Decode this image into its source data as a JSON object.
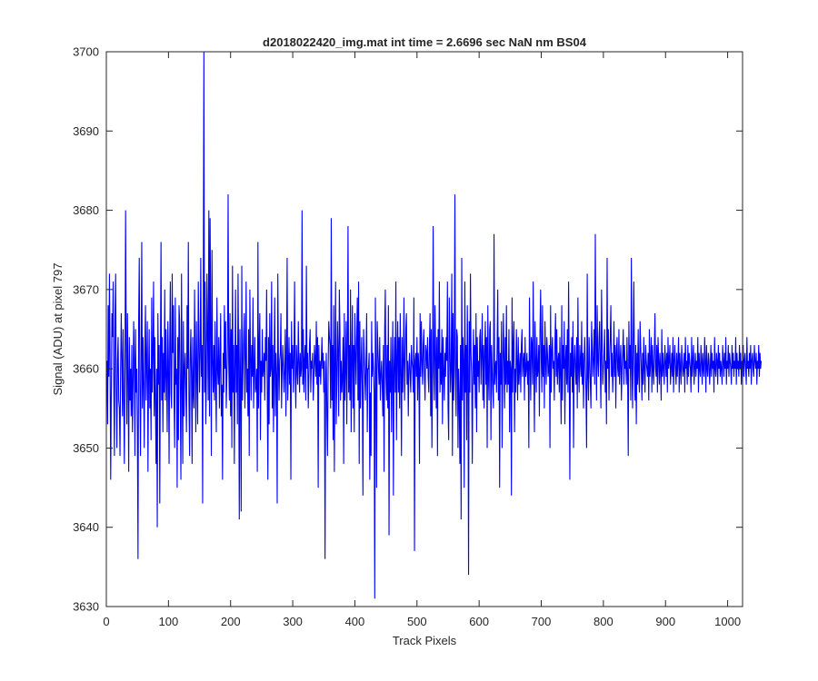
{
  "chart_data": {
    "type": "line",
    "title": "d2018022420_img.mat int time = 2.6696 sec  NaN nm BS04",
    "xlabel": "Track Pixels",
    "ylabel": "Signal (ADU) at pixel 797",
    "xlim": [
      0,
      1024
    ],
    "ylim": [
      3630,
      3700
    ],
    "xticks": [
      0,
      100,
      200,
      300,
      400,
      500,
      600,
      700,
      800,
      900,
      1000
    ],
    "yticks": [
      3630,
      3640,
      3650,
      3660,
      3670,
      3680,
      3690,
      3700
    ],
    "grid": false,
    "legend": "none",
    "series": [
      {
        "color": "#0000ff",
        "x_start": 1,
        "x_step": 1,
        "values": [
          3661,
          3653,
          3668,
          3659,
          3672,
          3661,
          3646,
          3657,
          3667,
          3664,
          3671,
          3658,
          3649,
          3666,
          3672,
          3657,
          3650,
          3661,
          3664,
          3656,
          3655,
          3649,
          3660,
          3667,
          3661,
          3654,
          3665,
          3656,
          3648,
          3660,
          3680,
          3663,
          3653,
          3667,
          3659,
          3647,
          3664,
          3656,
          3660,
          3654,
          3663,
          3652,
          3658,
          3666,
          3661,
          3649,
          3665,
          3657,
          3660,
          3652,
          3636,
          3666,
          3674,
          3658,
          3649,
          3661,
          3676,
          3655,
          3664,
          3658,
          3650,
          3663,
          3668,
          3656,
          3661,
          3666,
          3647,
          3659,
          3665,
          3655,
          3660,
          3651,
          3669,
          3657,
          3662,
          3671,
          3654,
          3664,
          3656,
          3648,
          3660,
          3640,
          3667,
          3658,
          3663,
          3643,
          3661,
          3676,
          3656,
          3664,
          3652,
          3662,
          3657,
          3670,
          3656,
          3665,
          3659,
          3652,
          3666,
          3661,
          3648,
          3663,
          3671,
          3657,
          3655,
          3672,
          3662,
          3668,
          3656,
          3650,
          3669,
          3658,
          3660,
          3645,
          3664,
          3651,
          3668,
          3666,
          3656,
          3646,
          3672,
          3658,
          3648,
          3666,
          3654,
          3660,
          3662,
          3657,
          3652,
          3668,
          3660,
          3676,
          3656,
          3649,
          3661,
          3665,
          3659,
          3648,
          3664,
          3657,
          3655,
          3670,
          3661,
          3652,
          3666,
          3659,
          3653,
          3671,
          3664,
          3657,
          3662,
          3674,
          3659,
          3663,
          3643,
          3668,
          3700,
          3657,
          3671,
          3653,
          3659,
          3672,
          3664,
          3656,
          3680,
          3654,
          3679,
          3665,
          3649,
          3675,
          3661,
          3657,
          3663,
          3656,
          3666,
          3658,
          3652,
          3669,
          3660,
          3658,
          3664,
          3655,
          3661,
          3667,
          3654,
          3658,
          3646,
          3662,
          3657,
          3668,
          3660,
          3666,
          3655,
          3659,
          3663,
          3682,
          3661,
          3656,
          3667,
          3654,
          3665,
          3650,
          3673,
          3657,
          3663,
          3648,
          3660,
          3670,
          3657,
          3663,
          3653,
          3672,
          3661,
          3641,
          3665,
          3658,
          3642,
          3673,
          3656,
          3660,
          3664,
          3667,
          3655,
          3661,
          3671,
          3657,
          3660,
          3654,
          3665,
          3649,
          3670,
          3662,
          3656,
          3663,
          3659,
          3669,
          3655,
          3660,
          3664,
          3657,
          3658,
          3660,
          3647,
          3676,
          3655,
          3663,
          3667,
          3651,
          3661,
          3657,
          3665,
          3659,
          3660,
          3662,
          3656,
          3664,
          3661,
          3670,
          3657,
          3646,
          3664,
          3653,
          3667,
          3659,
          3660,
          3671,
          3655,
          3663,
          3652,
          3660,
          3669,
          3654,
          3662,
          3659,
          3643,
          3672,
          3661,
          3656,
          3661,
          3662,
          3667,
          3655,
          3660,
          3663,
          3660,
          3657,
          3660,
          3665,
          3654,
          3661,
          3674,
          3656,
          3660,
          3664,
          3658,
          3662,
          3646,
          3666,
          3660,
          3663,
          3657,
          3661,
          3671,
          3659,
          3655,
          3663,
          3660,
          3658,
          3666,
          3661,
          3657,
          3662,
          3659,
          3660,
          3680,
          3658,
          3665,
          3657,
          3661,
          3663,
          3656,
          3673,
          3660,
          3662,
          3655,
          3659,
          3663,
          3665,
          3657,
          3661,
          3660,
          3662,
          3656,
          3659,
          3663,
          3661,
          3659,
          3666,
          3658,
          3664,
          3645,
          3663,
          3659,
          3661,
          3658,
          3661,
          3664,
          3660,
          3662,
          3657,
          3661,
          3636,
          3658,
          3662,
          3654,
          3649,
          3660,
          3666,
          3664,
          3663,
          3655,
          3679,
          3656,
          3663,
          3651,
          3668,
          3647,
          3661,
          3671,
          3653,
          3658,
          3666,
          3662,
          3654,
          3670,
          3665,
          3656,
          3661,
          3657,
          3659,
          3664,
          3648,
          3667,
          3656,
          3660,
          3666,
          3653,
          3663,
          3678,
          3657,
          3663,
          3656,
          3670,
          3652,
          3661,
          3668,
          3655,
          3663,
          3652,
          3667,
          3662,
          3658,
          3664,
          3669,
          3656,
          3671,
          3648,
          3666,
          3655,
          3660,
          3664,
          3657,
          3644,
          3665,
          3662,
          3659,
          3656,
          3661,
          3667,
          3652,
          3660,
          3660,
          3662,
          3646,
          3657,
          3649,
          3666,
          3659,
          3662,
          3660,
          3657,
          3631,
          3669,
          3660,
          3645,
          3666,
          3663,
          3660,
          3658,
          3664,
          3656,
          3659,
          3661,
          3658,
          3654,
          3663,
          3647,
          3665,
          3670,
          3659,
          3656,
          3663,
          3655,
          3668,
          3639,
          3661,
          3657,
          3664,
          3652,
          3660,
          3666,
          3644,
          3660,
          3664,
          3657,
          3671,
          3651,
          3661,
          3666,
          3657,
          3664,
          3655,
          3667,
          3660,
          3649,
          3664,
          3657,
          3661,
          3669,
          3656,
          3660,
          3665,
          3667,
          3658,
          3661,
          3654,
          3660,
          3662,
          3659,
          3657,
          3663,
          3661,
          3660,
          3657,
          3669,
          3637,
          3661,
          3662,
          3659,
          3664,
          3656,
          3662,
          3660,
          3648,
          3667,
          3659,
          3666,
          3661,
          3658,
          3663,
          3665,
          3659,
          3656,
          3663,
          3662,
          3660,
          3664,
          3659,
          3657,
          3663,
          3667,
          3654,
          3665,
          3650,
          3659,
          3678,
          3660,
          3656,
          3668,
          3662,
          3655,
          3664,
          3649,
          3665,
          3660,
          3671,
          3657,
          3662,
          3658,
          3665,
          3653,
          3664,
          3660,
          3656,
          3662,
          3659,
          3664,
          3661,
          3671,
          3655,
          3651,
          3669,
          3663,
          3657,
          3660,
          3672,
          3649,
          3667,
          3656,
          3661,
          3682,
          3659,
          3654,
          3665,
          3664,
          3650,
          3660,
          3656,
          3648,
          3663,
          3641,
          3674,
          3656,
          3664,
          3661,
          3645,
          3671,
          3657,
          3663,
          3651,
          3668,
          3660,
          3634,
          3666,
          3657,
          3672,
          3662,
          3659,
          3648,
          3660,
          3665,
          3658,
          3663,
          3655,
          3667,
          3652,
          3664,
          3659,
          3661,
          3657,
          3664,
          3665,
          3658,
          3662,
          3667,
          3656,
          3663,
          3655,
          3662,
          3666,
          3658,
          3664,
          3650,
          3668,
          3659,
          3656,
          3665,
          3666,
          3651,
          3663,
          3660,
          3657,
          3655,
          3677,
          3658,
          3660,
          3661,
          3657,
          3663,
          3670,
          3656,
          3664,
          3645,
          3662,
          3658,
          3666,
          3650,
          3660,
          3667,
          3661,
          3655,
          3664,
          3658,
          3668,
          3657,
          3661,
          3658,
          3665,
          3652,
          3661,
          3660,
          3644,
          3669,
          3657,
          3663,
          3666,
          3652,
          3660,
          3657,
          3665,
          3661,
          3656,
          3664,
          3658,
          3660,
          3662,
          3657,
          3663,
          3665,
          3659,
          3661,
          3662,
          3656,
          3664,
          3659,
          3660,
          3662,
          3658,
          3661,
          3650,
          3669,
          3661,
          3656,
          3664,
          3663,
          3658,
          3671,
          3660,
          3652,
          3666,
          3661,
          3657,
          3664,
          3659,
          3660,
          3663,
          3654,
          3665,
          3670,
          3661,
          3657,
          3668,
          3659,
          3663,
          3655,
          3666,
          3661,
          3658,
          3664,
          3662,
          3659,
          3660,
          3663,
          3650,
          3668,
          3657,
          3662,
          3664,
          3660,
          3661,
          3656,
          3663,
          3667,
          3659,
          3665,
          3658,
          3661,
          3662,
          3657,
          3664,
          3659,
          3653,
          3668,
          3656,
          3663,
          3660,
          3666,
          3653,
          3661,
          3663,
          3658,
          3665,
          3657,
          3671,
          3660,
          3646,
          3662,
          3659,
          3664,
          3657,
          3666,
          3650,
          3661,
          3663,
          3660,
          3658,
          3664,
          3655,
          3669,
          3660,
          3657,
          3663,
          3661,
          3659,
          3666,
          3658,
          3662,
          3655,
          3661,
          3664,
          3660,
          3657,
          3650,
          3672,
          3659,
          3656,
          3664,
          3661,
          3658,
          3655,
          3666,
          3663,
          3659,
          3661,
          3665,
          3658,
          3677,
          3663,
          3656,
          3668,
          3661,
          3659,
          3664,
          3666,
          3660,
          3655,
          3670,
          3663,
          3658,
          3660,
          3662,
          3665,
          3657,
          3661,
          3653,
          3674,
          3660,
          3665,
          3656,
          3661,
          3664,
          3668,
          3659,
          3662,
          3657,
          3660,
          3666,
          3659,
          3663,
          3655,
          3662,
          3664,
          3660,
          3659,
          3665,
          3658,
          3661,
          3663,
          3656,
          3660,
          3662,
          3665,
          3658,
          3663,
          3660,
          3661,
          3658,
          3664,
          3659,
          3649,
          3666,
          3660,
          3663,
          3656,
          3674,
          3660,
          3655,
          3664,
          3671,
          3660,
          3656,
          3663,
          3653,
          3662,
          3658,
          3665,
          3659,
          3657,
          3666,
          3663,
          3660,
          3656,
          3662,
          3658,
          3664,
          3660,
          3657,
          3663,
          3661,
          3660,
          3659,
          3662,
          3656,
          3665,
          3659,
          3661,
          3664,
          3657,
          3663,
          3660,
          3658,
          3662,
          3667,
          3660,
          3659,
          3663,
          3657,
          3664,
          3661,
          3658,
          3662,
          3660,
          3656,
          3665,
          3659,
          3662,
          3660,
          3658,
          3663,
          3661,
          3659,
          3662,
          3657,
          3664,
          3660,
          3661,
          3663,
          3658,
          3660,
          3662,
          3659,
          3664,
          3657,
          3661,
          3663,
          3660,
          3658,
          3662,
          3659,
          3661,
          3664,
          3657,
          3662,
          3660,
          3658,
          3663,
          3661,
          3659,
          3660,
          3662,
          3657,
          3664,
          3660,
          3661,
          3658,
          3663,
          3659,
          3662,
          3661,
          3660,
          3657,
          3664,
          3659,
          3661,
          3663,
          3658,
          3660,
          3662,
          3659,
          3661,
          3660,
          3664,
          3657,
          3662,
          3660,
          3659,
          3663,
          3661,
          3658,
          3662,
          3660,
          3659,
          3664,
          3661,
          3657,
          3663,
          3660,
          3659,
          3662,
          3661,
          3658,
          3660,
          3663,
          3659,
          3662,
          3660,
          3661,
          3657,
          3664,
          3660,
          3659,
          3662,
          3661,
          3658,
          3663,
          3660,
          3662,
          3659,
          3661,
          3660,
          3658,
          3663,
          3661,
          3659,
          3662,
          3660,
          3664,
          3658,
          3661,
          3660,
          3663,
          3659,
          3662,
          3661,
          3660,
          3658,
          3663,
          3660,
          3662,
          3659,
          3661,
          3660,
          3664,
          3658,
          3662,
          3660,
          3661,
          3659,
          3663,
          3660,
          3662,
          3658,
          3661,
          3660,
          3663,
          3659,
          3661,
          3662,
          3660,
          3658,
          3664,
          3660,
          3661,
          3659,
          3662,
          3660,
          3663,
          3658,
          3661,
          3662,
          3660,
          3659,
          3663,
          3661,
          3660,
          3662,
          3658,
          3661,
          3660,
          3663,
          3659,
          3662,
          3660,
          3661
        ]
      }
    ]
  }
}
